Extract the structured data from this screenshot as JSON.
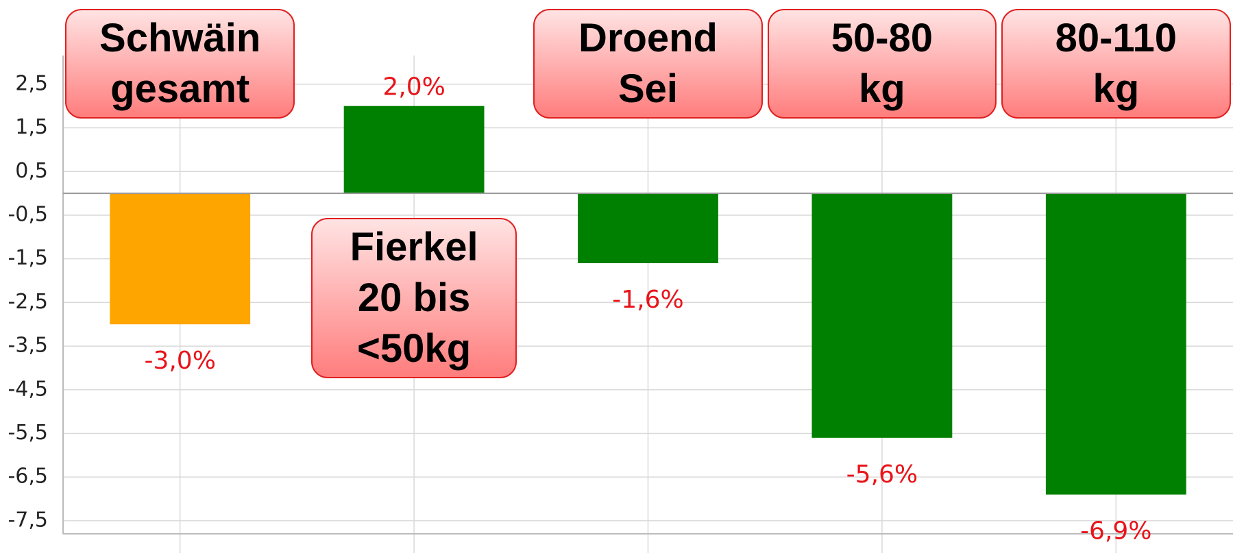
{
  "chart_data": {
    "type": "bar",
    "categories": [
      "Schwäin\ngesamt",
      "Fierkel\n20 bis\n<50kg",
      "Droend\nSei",
      "50-80\nkg",
      "80-110\nkg"
    ],
    "values": [
      -3.0,
      2.0,
      -1.6,
      -5.6,
      -6.9
    ],
    "value_labels": [
      "-3,0%",
      "2,0%",
      "-1,6%",
      "-5,6%",
      "-6,9%"
    ],
    "colors": [
      "#ffa500",
      "#008000",
      "#008000",
      "#008000",
      "#008000"
    ],
    "ylim": [
      -7.8,
      3
    ],
    "yticks": [
      {
        "value": 2.5,
        "label": "2,5"
      },
      {
        "value": 1.5,
        "label": "1,5"
      },
      {
        "value": 0.5,
        "label": "0,5"
      },
      {
        "value": -0.5,
        "label": "-0,5"
      },
      {
        "value": -1.5,
        "label": "-1,5"
      },
      {
        "value": -2.5,
        "label": "-2,5"
      },
      {
        "value": -3.5,
        "label": "-3,5"
      },
      {
        "value": -4.5,
        "label": "-4,5"
      },
      {
        "value": -5.5,
        "label": "-5,5"
      },
      {
        "value": -6.5,
        "label": "-6,5"
      },
      {
        "value": -7.5,
        "label": "-7,5"
      }
    ],
    "grid": true
  }
}
